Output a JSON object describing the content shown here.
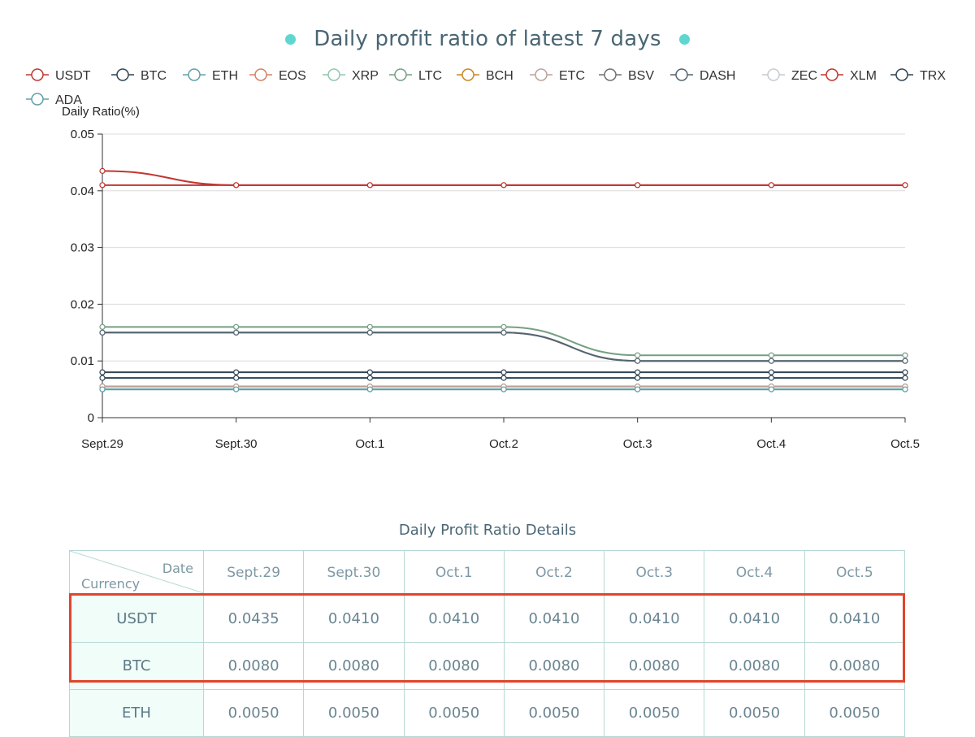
{
  "chart_data": {
    "type": "line",
    "title": "Daily profit ratio of latest 7 days",
    "ylabel": "Daily Ratio(%)",
    "xlabel": "",
    "ylim": [
      0,
      0.05
    ],
    "y_ticks": [
      "0",
      "0.01",
      "0.02",
      "0.03",
      "0.04",
      "0.05"
    ],
    "grid": true,
    "legend_position": "top",
    "categories": [
      "Sept.29",
      "Sept.30",
      "Oct.1",
      "Oct.2",
      "Oct.3",
      "Oct.4",
      "Oct.5"
    ],
    "series": [
      {
        "name": "USDT",
        "color": "#c23531",
        "values": [
          0.0435,
          0.041,
          0.041,
          0.041,
          0.041,
          0.041,
          0.041
        ]
      },
      {
        "name": "BTC",
        "color": "#2f4554",
        "values": [
          0.008,
          0.008,
          0.008,
          0.008,
          0.008,
          0.008,
          0.008
        ]
      },
      {
        "name": "ETH",
        "color": "#61a0a8",
        "values": [
          0.005,
          0.005,
          0.005,
          0.005,
          0.005,
          0.005,
          0.005
        ]
      },
      {
        "name": "EOS",
        "color": "#d48265",
        "values": [
          0.0055,
          0.0055,
          0.0055,
          0.0055,
          0.0055,
          0.0055,
          0.0055
        ]
      },
      {
        "name": "XRP",
        "color": "#91c7ae",
        "values": [
          0.005,
          0.005,
          0.005,
          0.005,
          0.005,
          0.005,
          0.005
        ]
      },
      {
        "name": "LTC",
        "color": "#749f83",
        "values": [
          0.016,
          0.016,
          0.016,
          0.016,
          0.011,
          0.011,
          0.011
        ]
      },
      {
        "name": "BCH",
        "color": "#ca8622",
        "values": [
          0.0055,
          0.0055,
          0.0055,
          0.0055,
          0.0055,
          0.0055,
          0.0055
        ]
      },
      {
        "name": "ETC",
        "color": "#bda29a",
        "values": [
          0.0055,
          0.0055,
          0.0055,
          0.0055,
          0.0055,
          0.0055,
          0.0055
        ]
      },
      {
        "name": "BSV",
        "color": "#6e7074",
        "values": [
          0.015,
          0.015,
          0.015,
          0.015,
          0.01,
          0.01,
          0.01
        ]
      },
      {
        "name": "DASH",
        "color": "#546570",
        "values": [
          0.015,
          0.015,
          0.015,
          0.015,
          0.01,
          0.01,
          0.01
        ]
      },
      {
        "name": "ZEC",
        "color": "#c4ccd3",
        "values": [
          0.007,
          0.007,
          0.007,
          0.007,
          0.007,
          0.007,
          0.007
        ]
      },
      {
        "name": "XLM",
        "color": "#c23531",
        "values": [
          0.041,
          0.041,
          0.041,
          0.041,
          0.041,
          0.041,
          0.041
        ]
      },
      {
        "name": "TRX",
        "color": "#2f4554",
        "values": [
          0.007,
          0.007,
          0.007,
          0.007,
          0.007,
          0.007,
          0.007
        ]
      },
      {
        "name": "ADA",
        "color": "#61a0a8",
        "values": [
          0.005,
          0.005,
          0.005,
          0.005,
          0.005,
          0.005,
          0.005
        ]
      }
    ]
  },
  "table": {
    "title": "Daily Profit Ratio Details",
    "corner_date": "Date",
    "corner_currency": "Currency",
    "headers": [
      "Sept.29",
      "Sept.30",
      "Oct.1",
      "Oct.2",
      "Oct.3",
      "Oct.4",
      "Oct.5"
    ],
    "rows": [
      {
        "currency": "USDT",
        "values": [
          "0.0435",
          "0.0410",
          "0.0410",
          "0.0410",
          "0.0410",
          "0.0410",
          "0.0410"
        ]
      },
      {
        "currency": "BTC",
        "values": [
          "0.0080",
          "0.0080",
          "0.0080",
          "0.0080",
          "0.0080",
          "0.0080",
          "0.0080"
        ]
      },
      {
        "currency": "ETH",
        "values": [
          "0.0050",
          "0.0050",
          "0.0050",
          "0.0050",
          "0.0050",
          "0.0050",
          "0.0050"
        ]
      }
    ],
    "highlight_color": "#e0452c"
  },
  "title_dot_color": "#5fd6cf"
}
